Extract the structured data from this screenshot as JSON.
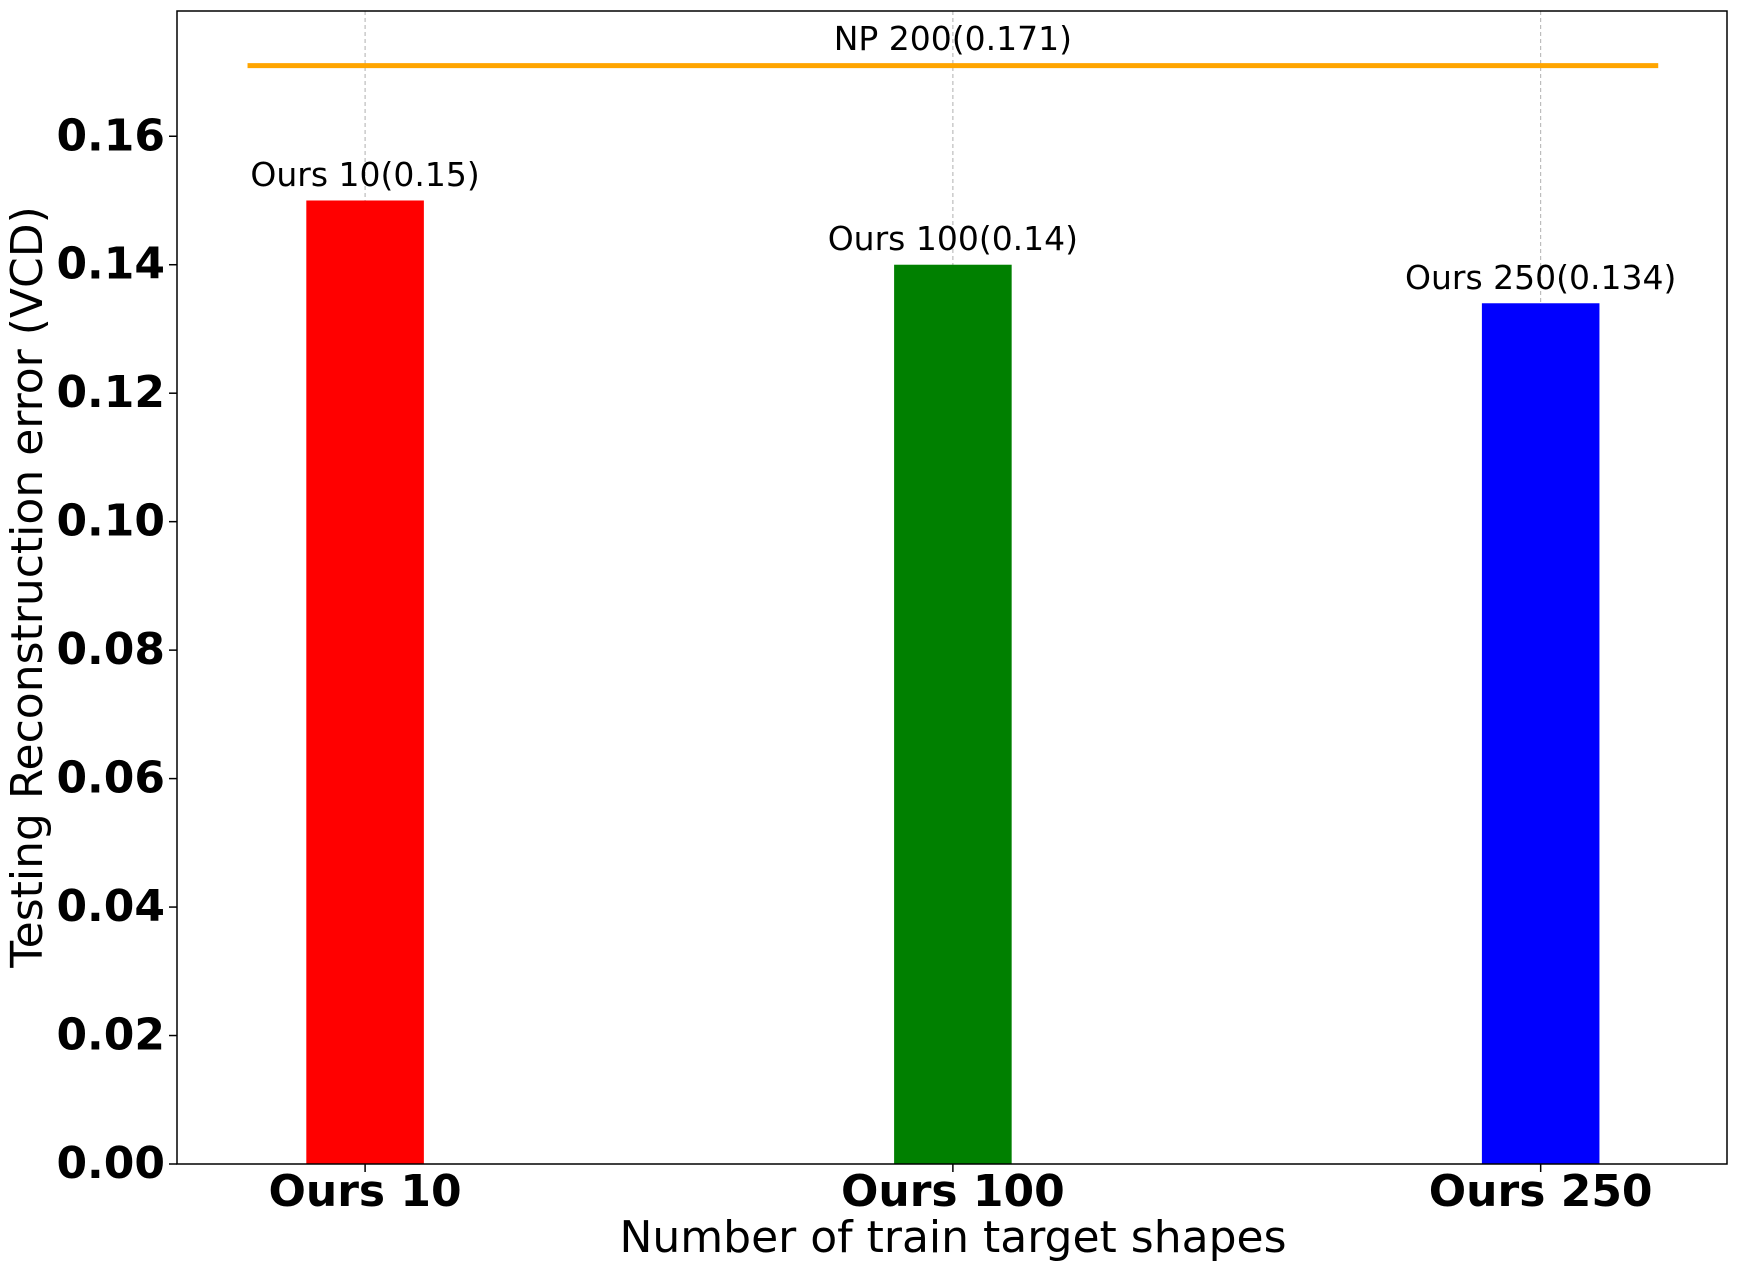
{
  "chart_data": {
    "type": "bar",
    "x_label": "Number of train target shapes",
    "y_label": "Testing Reconstruction error (VCD)",
    "categories": [
      "Ours 10",
      "Ours 100",
      "Ours 250"
    ],
    "values": [
      0.15,
      0.14,
      0.134
    ],
    "value_labels": [
      "Ours 10(0.15)",
      "Ours 100(0.14)",
      "Ours 250(0.134)"
    ],
    "colors": [
      "#ff0000",
      "#008000",
      "#0000ff"
    ],
    "reference_line": {
      "value": 0.171,
      "label": "NP 200(0.171)",
      "color": "#ffa500"
    },
    "ylim": [
      0,
      0.1795
    ],
    "yticks": [
      {
        "value": 0,
        "label": "0.00"
      },
      {
        "value": 0.02,
        "label": "0.02"
      },
      {
        "value": 0.04,
        "label": "0.04"
      },
      {
        "value": 0.06,
        "label": "0.06"
      },
      {
        "value": 0.08,
        "label": "0.08"
      },
      {
        "value": 0.1,
        "label": "0.10"
      },
      {
        "value": 0.12,
        "label": "0.12"
      },
      {
        "value": 0.14,
        "label": "0.14"
      },
      {
        "value": 0.16,
        "label": "0.16"
      }
    ],
    "grid": "x"
  }
}
